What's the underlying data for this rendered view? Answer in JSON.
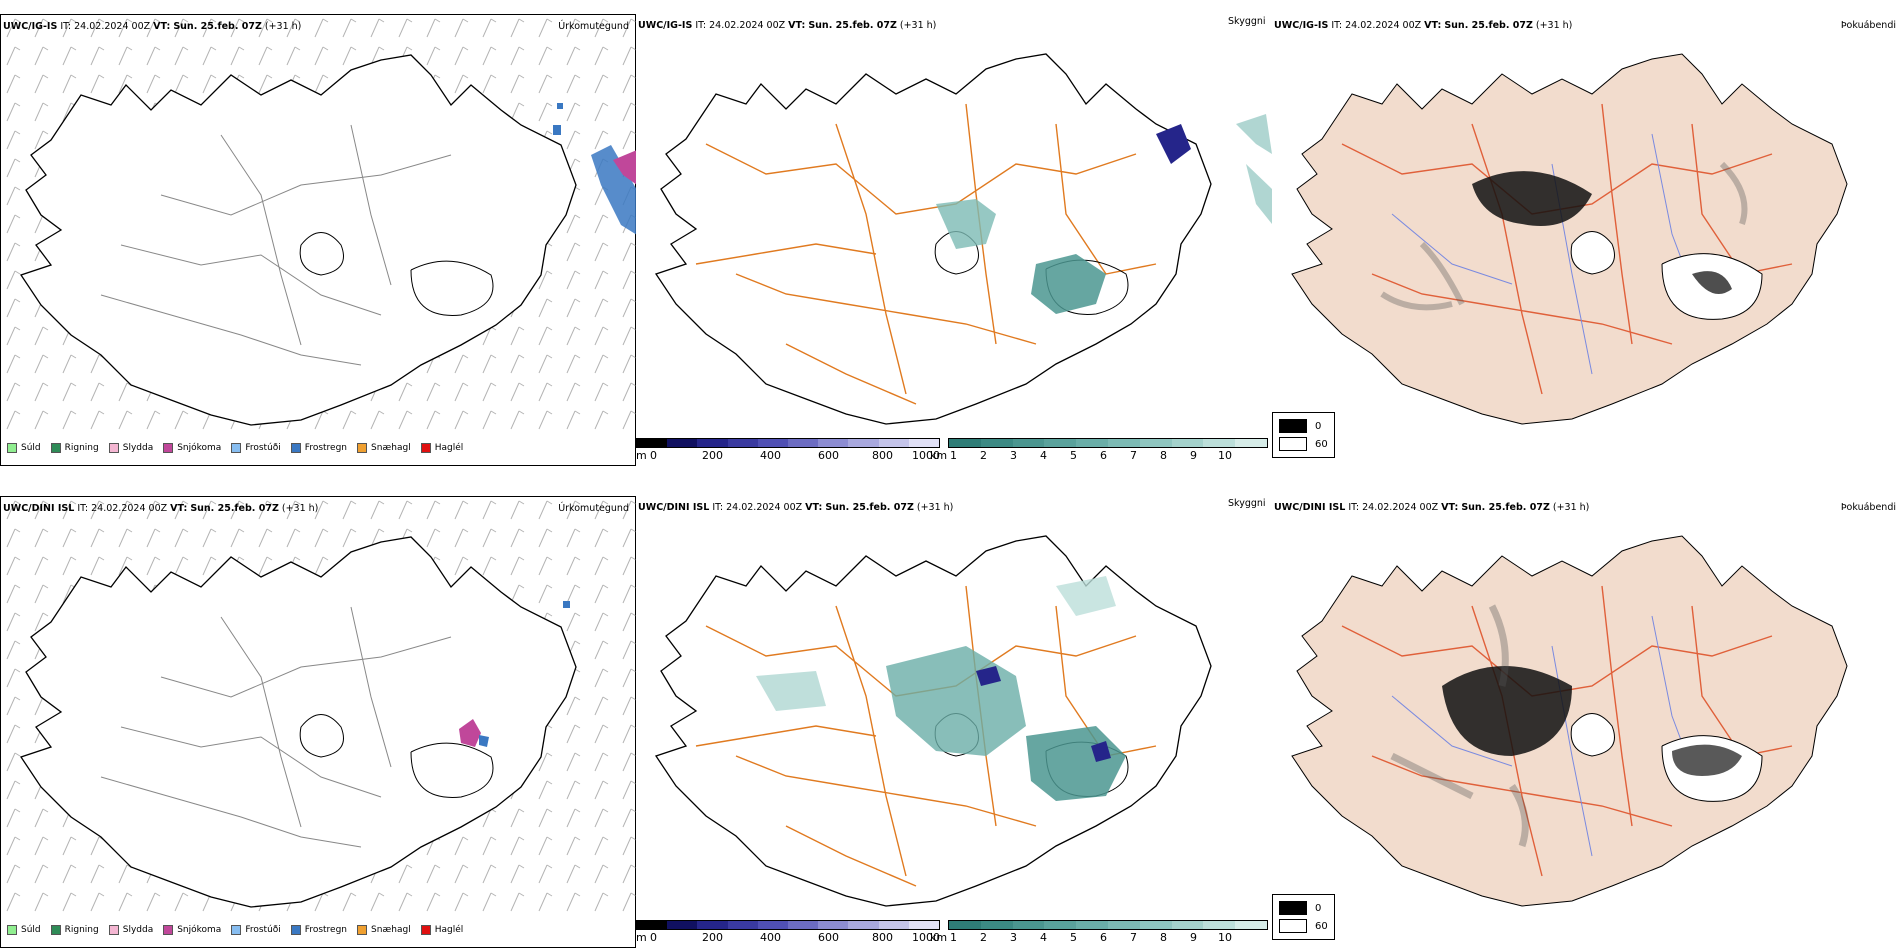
{
  "rows": [
    {
      "model": "UWC/IG-IS",
      "it_label": "IT:",
      "it_value": "24.02.2024 00Z",
      "vt_label": "VT:",
      "vt_value": "Sun. 25.feb. 07Z",
      "lead": "(+31 h)",
      "titles": {
        "precip": "Úrkomutegund",
        "cloud": "Skyggni",
        "fog": "Þokuábendi"
      }
    },
    {
      "model": "UWC/DINI ISL",
      "it_label": "IT:",
      "it_value": "24.02.2024 00Z",
      "vt_label": "VT:",
      "vt_value": "Sun. 25.feb. 07Z",
      "lead": "(+31 h)",
      "titles": {
        "precip": "Úrkomutegund",
        "cloud": "Skyggni",
        "fog": "Þokuábendi"
      }
    }
  ],
  "precip_legend": [
    {
      "label": "Súld",
      "color": "#90ee90"
    },
    {
      "label": "Rigning",
      "color": "#2e8b57"
    },
    {
      "label": "Slydda",
      "color": "#f4b6d2"
    },
    {
      "label": "Snjókoma",
      "color": "#c0479a"
    },
    {
      "label": "Frostúði",
      "color": "#87bdf0"
    },
    {
      "label": "Frostregn",
      "color": "#3a78c2"
    },
    {
      "label": "Snæhagl",
      "color": "#f0a030"
    },
    {
      "label": "Haglél",
      "color": "#e01010"
    }
  ],
  "ceiling_bar": {
    "unit": "m",
    "ticks": [
      "0",
      "200",
      "400",
      "600",
      "800",
      "1000"
    ],
    "colors": [
      "#000000",
      "#101060",
      "#25258a",
      "#3a3aa0",
      "#5050b4",
      "#6c6cc2",
      "#8c8cd2",
      "#a8a8de",
      "#c4c4ea",
      "#e0e0f6"
    ]
  },
  "visibility_bar": {
    "unit": "km",
    "ticks": [
      "1",
      "2",
      "3",
      "4",
      "5",
      "6",
      "7",
      "8",
      "9",
      "10"
    ],
    "colors": [
      "#2f7d77",
      "#3c8a84",
      "#4b9690",
      "#5aa29c",
      "#6aaea8",
      "#7cbab4",
      "#8fc6c0",
      "#a4d2cc",
      "#bcdfda",
      "#d6ece8"
    ]
  },
  "fog_legend": [
    {
      "label": "0",
      "color": "#000000"
    },
    {
      "label": "60",
      "color": "#ffffff"
    }
  ],
  "colors": {
    "road": "#e07a20",
    "land_fog": "#f2dccd",
    "road_fog": "#e0603a",
    "river": "#7a8ae0",
    "coast": "#000000"
  }
}
